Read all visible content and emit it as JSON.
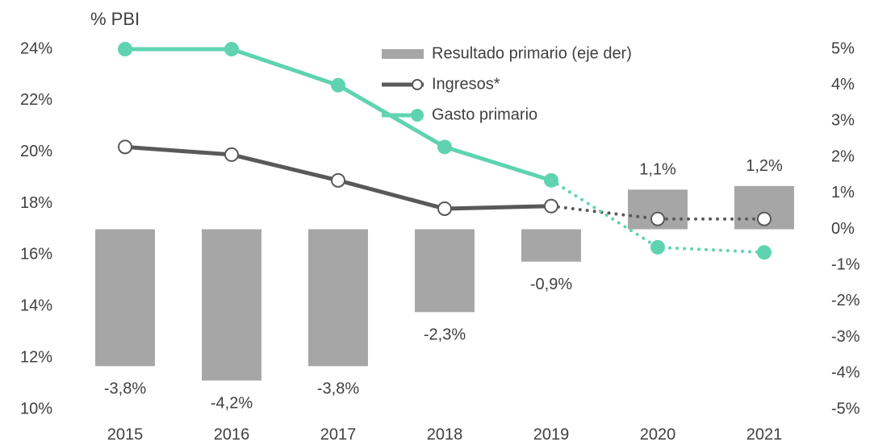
{
  "chart_data": {
    "type": "combo",
    "y_label": "% PBI",
    "categories": [
      "2015",
      "2016",
      "2017",
      "2018",
      "2019",
      "2020",
      "2021"
    ],
    "projected_from": "2019",
    "ylim": [
      10,
      24
    ],
    "yticks": [
      {
        "value": 10,
        "label": "10%"
      },
      {
        "value": 12,
        "label": "12%"
      },
      {
        "value": 14,
        "label": "14%"
      },
      {
        "value": 16,
        "label": "16%"
      },
      {
        "value": 18,
        "label": "18%"
      },
      {
        "value": 20,
        "label": "20%"
      },
      {
        "value": 22,
        "label": "22%"
      },
      {
        "value": 24,
        "label": "24%"
      }
    ],
    "y2lim": [
      -5,
      5
    ],
    "y2ticks": [
      {
        "value": -5,
        "label": "-5%"
      },
      {
        "value": -4,
        "label": "-4%"
      },
      {
        "value": -3,
        "label": "-3%"
      },
      {
        "value": -2,
        "label": "-2%"
      },
      {
        "value": -1,
        "label": "-1%"
      },
      {
        "value": 0,
        "label": "0%"
      },
      {
        "value": 1,
        "label": "1%"
      },
      {
        "value": 2,
        "label": "2%"
      },
      {
        "value": 3,
        "label": "3%"
      },
      {
        "value": 4,
        "label": "4%"
      },
      {
        "value": 5,
        "label": "5%"
      }
    ],
    "grid": false,
    "series": [
      {
        "name": "Resultado primario (eje der)",
        "type": "bar",
        "axis": "y2",
        "color": "#a6a6a6",
        "values": [
          -3.8,
          -4.2,
          -3.8,
          -2.3,
          -0.9,
          1.1,
          1.2
        ],
        "value_labels": [
          "-3,8%",
          "-4,2%",
          "-3,8%",
          "-2,3%",
          "-0,9%",
          "1,1%",
          "1,2%"
        ]
      },
      {
        "name": "Ingresos*",
        "type": "line",
        "color": "#595959",
        "marker": "open",
        "values": [
          20.2,
          19.9,
          18.9,
          17.8,
          17.9,
          17.4,
          17.4
        ]
      },
      {
        "name": "Gasto primario",
        "type": "line",
        "color": "#5fd3b0",
        "marker": "filled",
        "values": [
          24,
          24,
          22.6,
          20.2,
          18.9,
          16.3,
          16.1
        ]
      }
    ]
  }
}
